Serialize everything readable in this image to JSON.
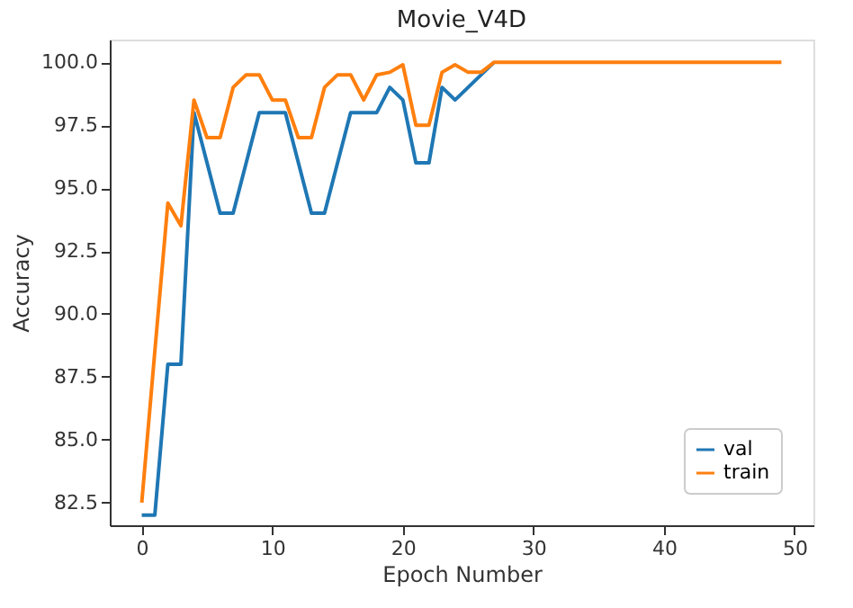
{
  "chart_data": {
    "type": "line",
    "title": "Movie_V4D",
    "xlabel": "Epoch Number",
    "ylabel": "Accuracy",
    "x": [
      0,
      1,
      2,
      3,
      4,
      5,
      6,
      7,
      8,
      9,
      10,
      11,
      12,
      13,
      14,
      15,
      16,
      17,
      18,
      19,
      20,
      21,
      22,
      23,
      24,
      25,
      26,
      27,
      28,
      29,
      30,
      31,
      32,
      33,
      34,
      35,
      36,
      37,
      38,
      39,
      40,
      41,
      42,
      43,
      44,
      45,
      46,
      47,
      48,
      49
    ],
    "series": [
      {
        "name": "val",
        "color": "#1f77b4",
        "values": [
          82,
          82,
          88,
          88,
          98,
          96,
          94,
          94,
          96,
          98,
          98,
          98,
          96,
          94,
          94,
          96,
          98,
          98,
          98,
          99,
          98.5,
          96,
          96,
          99,
          98.5,
          99,
          99.5,
          100,
          null,
          null,
          null,
          null,
          null,
          null,
          null,
          null,
          null,
          null,
          null,
          null,
          null,
          null,
          null,
          null,
          null,
          null,
          null,
          null,
          null,
          null
        ]
      },
      {
        "name": "train",
        "color": "#ff7f0e",
        "values": [
          82.5,
          88.5,
          94.4,
          93.5,
          98.5,
          97,
          97,
          99,
          99.5,
          99.5,
          98.5,
          98.5,
          97,
          97,
          99,
          99.5,
          99.5,
          98.5,
          99.5,
          99.6,
          99.9,
          97.5,
          97.5,
          99.6,
          99.9,
          99.6,
          99.6,
          100,
          100,
          100,
          100,
          100,
          100,
          100,
          100,
          100,
          100,
          100,
          100,
          100,
          100,
          100,
          100,
          100,
          100,
          100,
          100,
          100,
          100,
          100
        ]
      }
    ],
    "xlim": [
      -2.45,
      51.45
    ],
    "xticks": [
      0,
      10,
      20,
      30,
      40,
      50
    ],
    "ylim": [
      81.6,
      100.9
    ],
    "yticks": [
      82.5,
      {
        "value": 85,
        "label": "85.0"
      },
      87.5,
      {
        "value": 90,
        "label": "90.0"
      },
      92.5,
      {
        "value": 95,
        "label": "95.0"
      },
      97.5,
      {
        "value": 100,
        "label": "100.0"
      }
    ],
    "grid": false,
    "legend": "bottom right"
  }
}
